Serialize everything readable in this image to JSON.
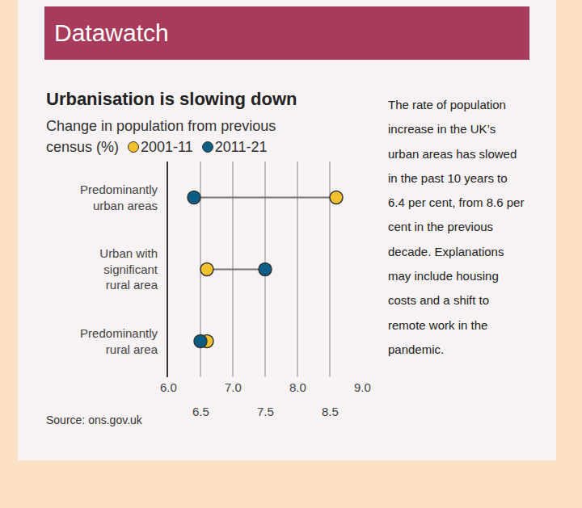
{
  "header": "Datawatch",
  "chart_data": {
    "type": "dumbbell",
    "orientation": "horizontal",
    "title": "Urbanisation is slowing down",
    "subtitle": "Change in population from previous census (%)",
    "categories": [
      "Predominantly urban areas",
      "Urban with significant rural area",
      "Predominantly rural area"
    ],
    "series": [
      {
        "name": "2001-11",
        "color": "#f2c12e",
        "values": [
          8.6,
          6.6,
          6.6
        ]
      },
      {
        "name": "2011-21",
        "color": "#0b5d84",
        "values": [
          6.4,
          7.5,
          6.5
        ]
      }
    ],
    "xlim": [
      6,
      9
    ],
    "xticks": [
      {
        "value": 6,
        "label": "6.0"
      },
      6.5,
      {
        "value": 7,
        "label": "7.0"
      },
      7.5,
      {
        "value": 8,
        "label": "8.0"
      },
      8.5,
      {
        "value": 9,
        "label": "9.0"
      }
    ],
    "grid": true,
    "annotations": [
      "The rate of population increase in the UK’s urban areas has slowed in the past 10 years to 6.4 per cent, from 8.6 per cent in the previous decade. Explanations may include housing costs and a shift to remote work in the pandemic."
    ],
    "source": "Source: ons.gov.uk"
  }
}
